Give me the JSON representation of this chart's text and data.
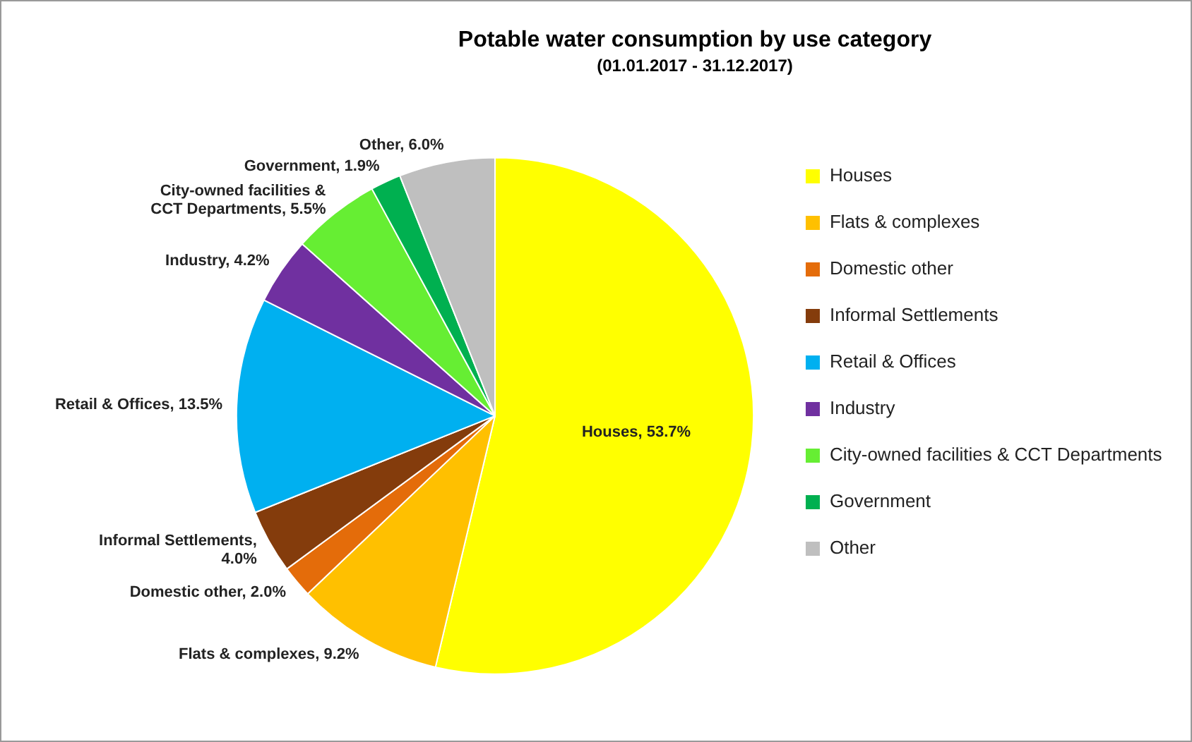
{
  "chart_data": {
    "type": "pie",
    "title": "Potable water consumption by use category",
    "subtitle": "(01.01.2017 - 31.12.2017)",
    "categories": [
      "Houses",
      "Flats & complexes",
      "Domestic other",
      "Informal Settlements",
      "Retail & Offices",
      "Industry",
      "City-owned facilities & CCT Departments",
      "Government",
      "Other"
    ],
    "values": [
      53.7,
      9.2,
      2.0,
      4.0,
      13.5,
      4.2,
      5.5,
      1.9,
      6.0
    ],
    "value_labels": [
      "Houses, 53.7%",
      "Flats & complexes, 9.2%",
      "Domestic other, 2.0%",
      "Informal Settlements, 4.0%",
      "Retail & Offices, 13.5%",
      "Industry, 4.2%",
      "City-owned facilities & CCT Departments, 5.5%",
      "Government, 1.9%",
      "Other, 6.0%"
    ],
    "colors": [
      "#ffff00",
      "#ffc000",
      "#e46c0a",
      "#843c0c",
      "#00b0f0",
      "#7030a0",
      "#66ee33",
      "#00b050",
      "#bfbfbf"
    ],
    "legend": "right"
  }
}
